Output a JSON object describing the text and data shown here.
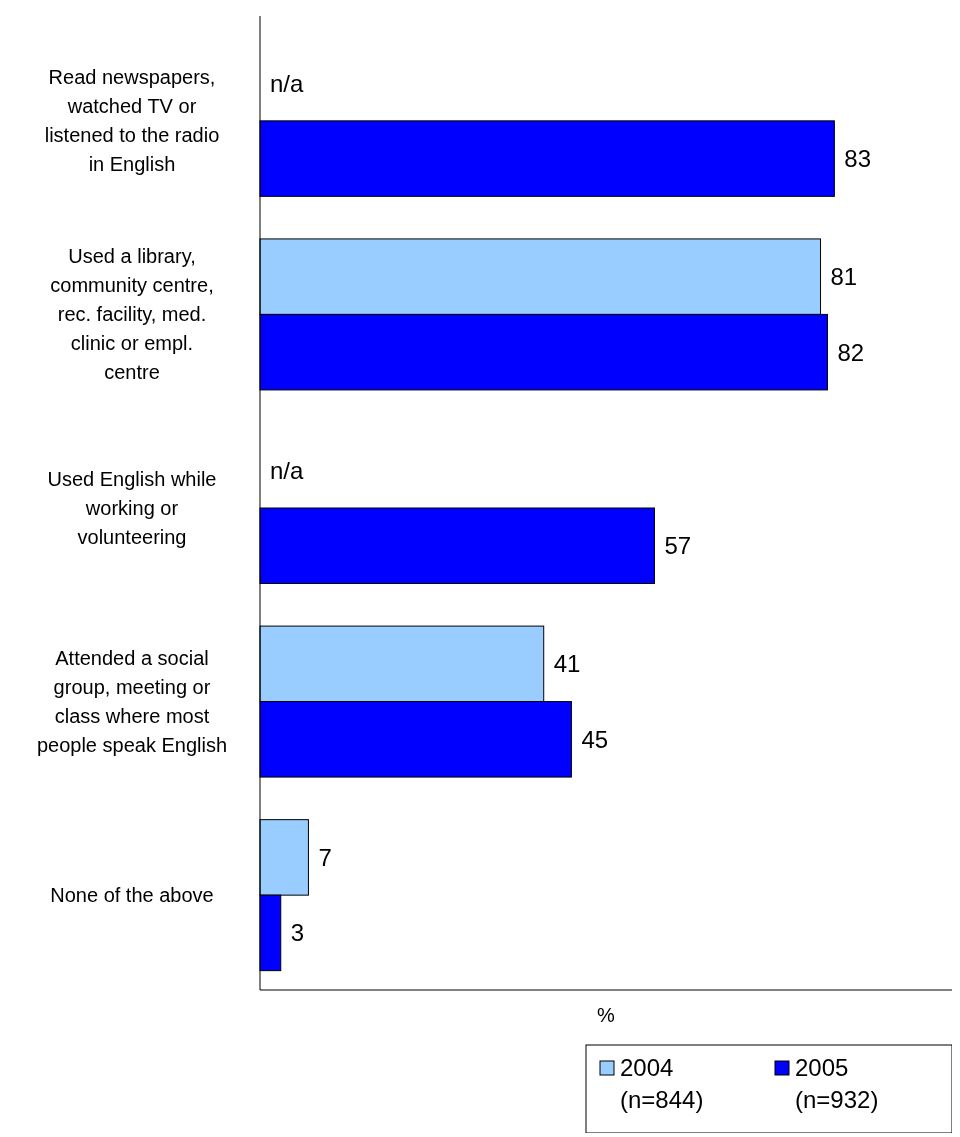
{
  "chart_data": {
    "type": "bar",
    "orientation": "horizontal",
    "xlabel": "%",
    "categories": [
      "Read newspapers, watched TV or listened to the radio in English",
      "Used a library, community centre, rec. facility, med. clinic or empl. centre",
      "Used English while working or volunteering",
      "Attended a social group, meeting or class where most people speak English",
      "None of the above"
    ],
    "series": [
      {
        "name": "2004 (n=844)",
        "color": "#99ccff",
        "values": [
          null,
          81,
          null,
          41,
          7
        ],
        "value_labels": [
          "n/a",
          "81",
          "n/a",
          "41",
          "7"
        ]
      },
      {
        "name": "2005 (n=932)",
        "color": "#0000ff",
        "values": [
          83,
          82,
          57,
          45,
          3
        ],
        "value_labels": [
          "83",
          "82",
          "57",
          "45",
          "3"
        ]
      }
    ],
    "xlim": [
      0,
      100
    ],
    "legend": "bottom",
    "tick_labels": "y"
  }
}
